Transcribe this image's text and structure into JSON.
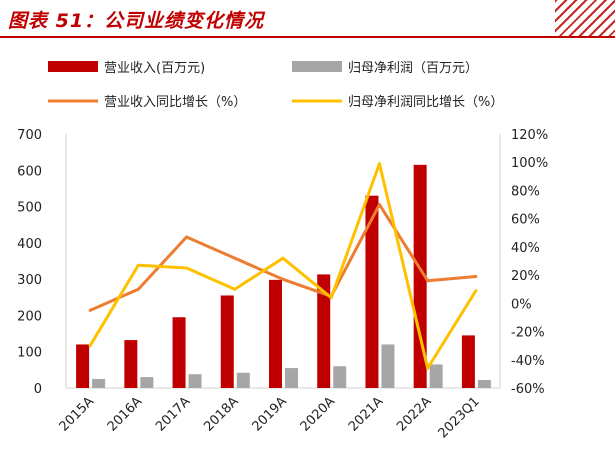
{
  "header": {
    "title": "图表 51：公司业绩变化情况"
  },
  "colors": {
    "revenue_bar": "#c00000",
    "profit_bar": "#a6a6a6",
    "revenue_growth_line": "#ed7d31",
    "profit_growth_line": "#ffc000",
    "axis": "#d0d0d0",
    "brand": "#c00000"
  },
  "chart_data": {
    "type": "bar",
    "title": "公司业绩变化情况",
    "categories": [
      "2015A",
      "2016A",
      "2017A",
      "2018A",
      "2019A",
      "2020A",
      "2021A",
      "2022A",
      "2023Q1"
    ],
    "series": [
      {
        "name": "营业收入(百万元)",
        "kind": "bar",
        "axis": "left",
        "values": [
          120,
          132,
          195,
          255,
          298,
          313,
          530,
          615,
          145
        ]
      },
      {
        "name": "归母净利润（百万元）",
        "kind": "bar",
        "axis": "left",
        "values": [
          25,
          30,
          38,
          42,
          55,
          60,
          120,
          65,
          22
        ]
      },
      {
        "name": "营业收入同比增长（%）",
        "kind": "line",
        "axis": "right",
        "values": [
          -5,
          10,
          47,
          32,
          17,
          5,
          70,
          16,
          19
        ]
      },
      {
        "name": "归母净利润同比增长（%）",
        "kind": "line",
        "axis": "right",
        "values": [
          -30,
          27,
          25,
          10,
          32,
          4,
          99,
          -46,
          9
        ]
      }
    ],
    "y_left": {
      "min": 0,
      "max": 700,
      "ticks": [
        "0",
        "100",
        "200",
        "300",
        "400",
        "500",
        "600",
        "700"
      ]
    },
    "y_right": {
      "min": -60,
      "max": 120,
      "ticks": [
        "-60%",
        "-40%",
        "-20%",
        "0%",
        "20%",
        "40%",
        "60%",
        "80%",
        "100%",
        "120%"
      ]
    },
    "legend_position": "top",
    "grid": false
  }
}
